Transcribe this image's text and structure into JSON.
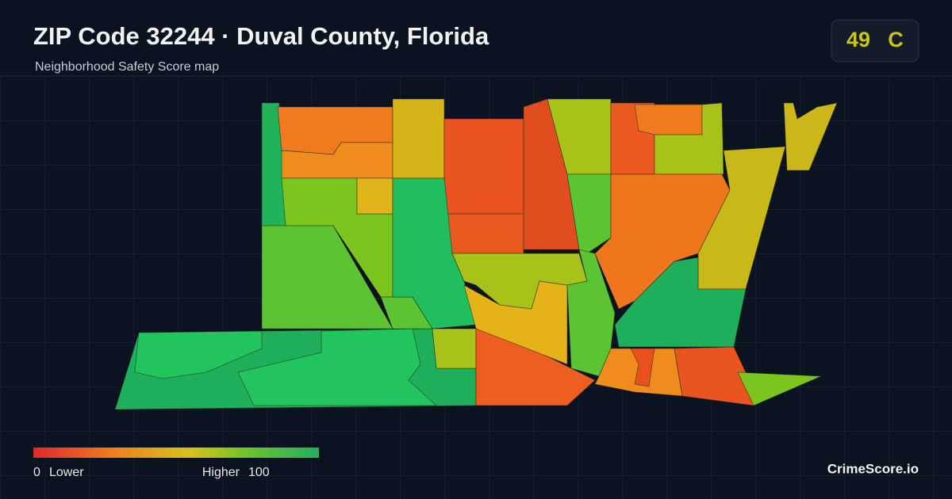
{
  "header": {
    "title": "ZIP Code 32244 · Duval County, Florida",
    "subtitle": "Neighborhood Safety Score map"
  },
  "score": {
    "value": 49,
    "grade": "C"
  },
  "legend": {
    "min": 0,
    "min_label": "Lower",
    "max": 100,
    "max_label": "Higher"
  },
  "brand": "CrimeScore.io"
}
